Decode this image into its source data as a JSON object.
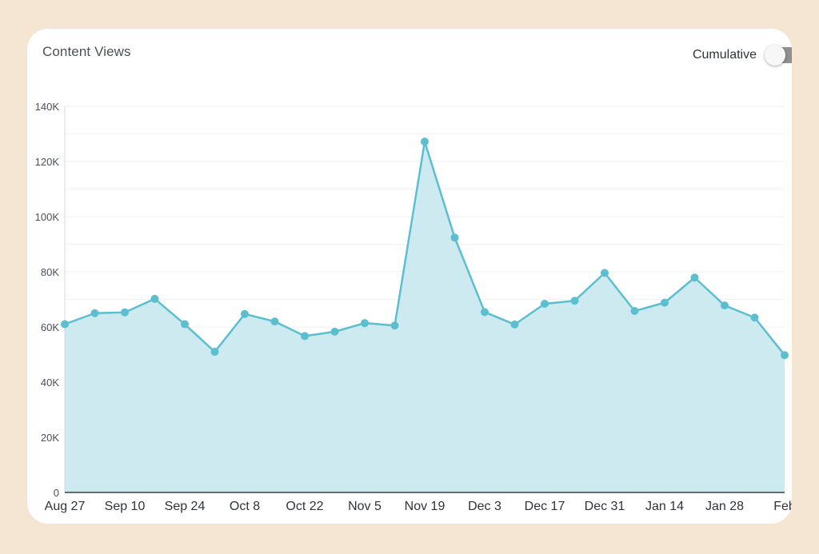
{
  "card": {
    "title": "Content Views",
    "toggle_label": "Cumulative",
    "toggle_on": false
  },
  "colors": {
    "line": "#5bbfd0",
    "fill": "#cdeaf0",
    "grid": "#eceff2",
    "background": "#f4e6d2"
  },
  "chart_data": {
    "type": "area",
    "title": "Content Views",
    "xlabel": "",
    "ylabel": "",
    "ylim": [
      0,
      140000
    ],
    "yticks": [
      0,
      20000,
      40000,
      60000,
      80000,
      100000,
      120000,
      140000
    ],
    "ytick_labels": [
      "0",
      "20K",
      "40K",
      "60K",
      "80K",
      "100K",
      "120K",
      "140K"
    ],
    "grid": true,
    "x_tick_labels": [
      "Aug 27",
      "Sep 10",
      "Sep 24",
      "Oct 8",
      "Oct 22",
      "Nov 5",
      "Nov 19",
      "Dec 3",
      "Dec 17",
      "Dec 31",
      "Jan 14",
      "Jan 28",
      "Feb"
    ],
    "x": [
      "Aug 27",
      "Sep 3",
      "Sep 10",
      "Sep 17",
      "Sep 24",
      "Oct 1",
      "Oct 8",
      "Oct 15",
      "Oct 22",
      "Oct 29",
      "Nov 5",
      "Nov 12",
      "Nov 19",
      "Nov 26",
      "Dec 3",
      "Dec 10",
      "Dec 17",
      "Dec 24",
      "Dec 31",
      "Jan 7",
      "Jan 14",
      "Jan 21",
      "Jan 28",
      "Feb 4",
      "Feb 11"
    ],
    "series": [
      {
        "values": [
          61000,
          65000,
          65300,
          70200,
          61000,
          51000,
          64700,
          62000,
          56700,
          58300,
          61400,
          60500,
          127200,
          92400,
          65400,
          60900,
          68400,
          69500,
          79600,
          65800,
          68800,
          77900,
          67800,
          63400,
          49800
        ]
      }
    ]
  }
}
